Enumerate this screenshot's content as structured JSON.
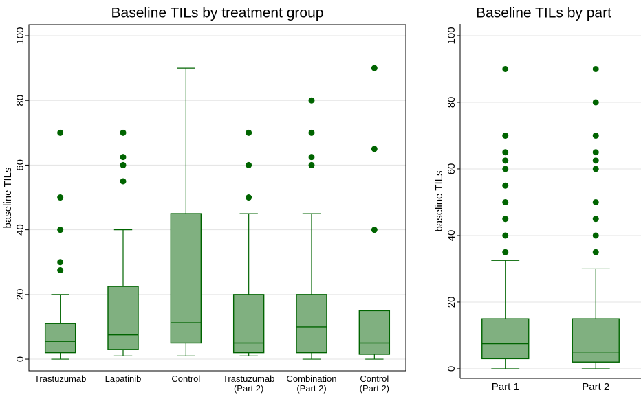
{
  "chart_data": [
    {
      "type": "box",
      "title": "Baseline TILs by treatment group",
      "ylabel": "baseline TILs",
      "categories": [
        "Trastuzumab",
        "Lapatinib",
        "Control",
        "Trastuzumab\n(Part 2)",
        "Combination\n(Part 2)",
        "Control\n(Part 2)"
      ],
      "boxes": [
        {
          "low": 0,
          "q1": 2,
          "median": 5.5,
          "q3": 11,
          "high": 20,
          "outliers": [
            27.5,
            30,
            40,
            50,
            70
          ]
        },
        {
          "low": 1,
          "q1": 3,
          "median": 7.5,
          "q3": 22.5,
          "high": 40,
          "outliers": [
            55,
            60,
            62.5,
            70
          ]
        },
        {
          "low": 1,
          "q1": 5,
          "median": 11.25,
          "q3": 45,
          "high": 90,
          "outliers": []
        },
        {
          "low": 1,
          "q1": 2,
          "median": 5,
          "q3": 20,
          "high": 45,
          "outliers": [
            50,
            60,
            70
          ]
        },
        {
          "low": 0,
          "q1": 2,
          "median": 10,
          "q3": 20,
          "high": 45,
          "outliers": [
            60,
            62.5,
            70,
            80
          ]
        },
        {
          "low": 0,
          "q1": 1.5,
          "median": 5,
          "q3": 15,
          "high": 15,
          "outliers": [
            40,
            65,
            90
          ]
        }
      ],
      "color": "#80b080",
      "line_color": "#006400",
      "ylim": [
        -3.6,
        103.4
      ],
      "yticks": [
        0,
        20,
        40,
        60,
        80,
        100
      ],
      "grid": true
    },
    {
      "type": "box",
      "title": "Baseline TILs by part",
      "ylabel": "baseline TILs",
      "categories": [
        "Part 1",
        "Part 2"
      ],
      "boxes": [
        {
          "low": 0,
          "q1": 3,
          "median": 7.5,
          "q3": 15,
          "high": 32.5,
          "outliers": [
            35,
            40,
            45,
            50,
            55,
            60,
            62.5,
            65,
            70,
            90
          ]
        },
        {
          "low": 0,
          "q1": 2,
          "median": 5,
          "q3": 15,
          "high": 30,
          "outliers": [
            35,
            40,
            45,
            50,
            60,
            62.5,
            65,
            70,
            80,
            90
          ]
        }
      ],
      "color": "#80b080",
      "line_color": "#006400",
      "ylim": [
        -2.9,
        103.5
      ],
      "yticks": [
        0,
        20,
        40,
        60,
        80,
        100
      ],
      "grid": true
    }
  ]
}
